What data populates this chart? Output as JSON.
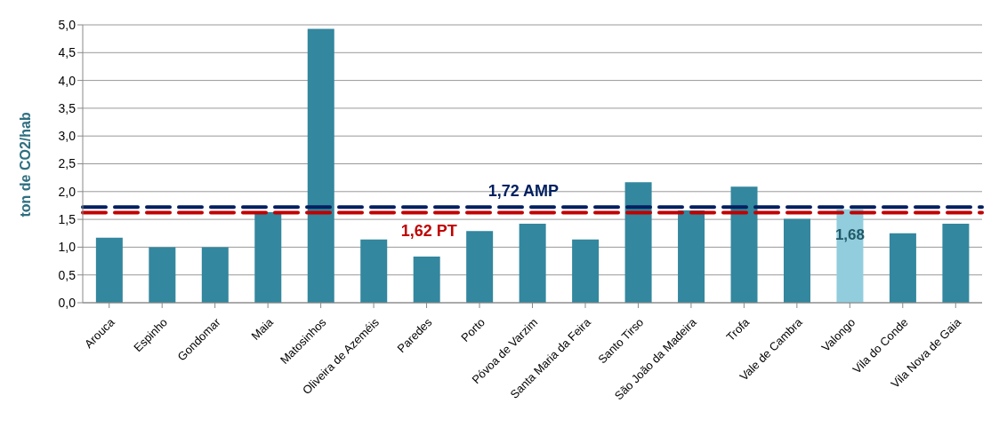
{
  "chart_data": {
    "type": "bar",
    "ylabel": "ton de CO2/hab",
    "categories": [
      "Arouca",
      "Espinho",
      "Gondomar",
      "Maia",
      "Matosinhos",
      "Oliveira de Azeméis",
      "Paredes",
      "Porto",
      "Póvoa de Varzim",
      "Santa Maria da Feira",
      "Santo Tirso",
      "São João da Madeira",
      "Trofa",
      "Vale de Cambra",
      "Valongo",
      "Vila do Conde",
      "Vila Nova de Gaia"
    ],
    "values": [
      1.17,
      1.0,
      1.0,
      1.63,
      4.93,
      1.14,
      0.83,
      1.29,
      1.42,
      1.14,
      2.17,
      1.66,
      2.09,
      1.51,
      1.68,
      1.25,
      1.42
    ],
    "colors": [
      "#33879e",
      "#33879e",
      "#33879e",
      "#33879e",
      "#33879e",
      "#33879e",
      "#33879e",
      "#33879e",
      "#33879e",
      "#33879e",
      "#33879e",
      "#33879e",
      "#33879e",
      "#33879e",
      "#92cddd",
      "#33879e",
      "#33879e"
    ],
    "value_labels": [
      null,
      null,
      null,
      null,
      null,
      null,
      null,
      null,
      null,
      null,
      null,
      null,
      null,
      null,
      "1,68",
      null,
      null
    ],
    "ylim": [
      0,
      5
    ],
    "yticks": [
      {
        "value": 0,
        "label": "0,0"
      },
      {
        "value": 0.5,
        "label": "0,5"
      },
      {
        "value": 1,
        "label": "1,0"
      },
      {
        "value": 1.5,
        "label": "1,5"
      },
      {
        "value": 2,
        "label": "2,0"
      },
      {
        "value": 2.5,
        "label": "2,5"
      },
      {
        "value": 3,
        "label": "3,0"
      },
      {
        "value": 3.5,
        "label": "3,5"
      },
      {
        "value": 4,
        "label": "4,0"
      },
      {
        "value": 4.5,
        "label": "4,5"
      },
      {
        "value": 5,
        "label": "5,0"
      }
    ],
    "grid": "y",
    "ref_lines": [
      {
        "axis": "y",
        "value": 1.72,
        "label": "1,72 AMP",
        "color": "#002060",
        "line_style": "dashed"
      },
      {
        "axis": "y",
        "value": 1.62,
        "label": "1,62 PT",
        "color": "#c00000",
        "line_style": "dashed"
      }
    ]
  }
}
